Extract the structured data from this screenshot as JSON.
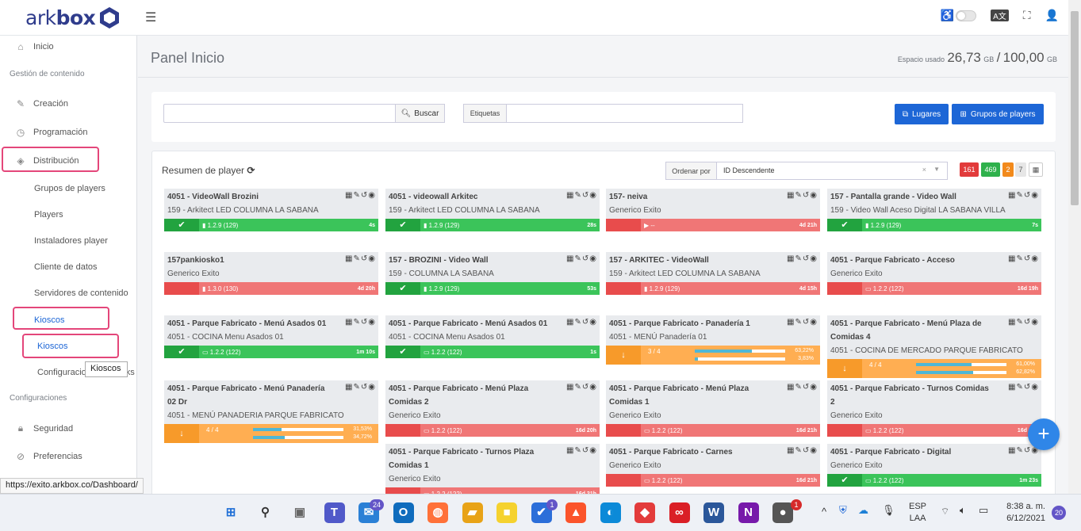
{
  "app": {
    "brand_light": "ark",
    "brand_bold": "box"
  },
  "header": {
    "menu_icon": "hamburger-icon",
    "icons": [
      "accessibility-icon",
      "translate-icon",
      "fullscreen-icon",
      "user-icon"
    ]
  },
  "sidebar": {
    "inicio": "Inicio",
    "sec_contenido": "Gestión de contenido",
    "creacion": "Creación",
    "programacion": "Programación",
    "distribucion": "Distribución",
    "grupos": "Grupos de players",
    "players": "Players",
    "instaladores": "Instaladores player",
    "cliente": "Cliente de datos",
    "servidores": "Servidores de contenido",
    "kioscos": "Kioscos",
    "kioscos_sub": "Kioscos",
    "configuracion": "Configuracio",
    "configuracion_tail": "ks",
    "sec_config": "Configuraciones",
    "seguridad": "Seguridad",
    "preferencias": "Preferencias",
    "tooltip": "Kioscos"
  },
  "page": {
    "title": "Panel Inicio",
    "space_label": "Espacio usado",
    "space_used": "26,73",
    "space_unit": "GB",
    "space_sep": "/",
    "space_total": "100,00",
    "space_unit2": "GB"
  },
  "filters": {
    "search_value": "",
    "search_button": "Buscar",
    "tags_label": "Etiquetas",
    "tags_value": "",
    "lugares": "Lugares",
    "grupos": "Grupos de players"
  },
  "summary": {
    "title": "Resumen de player",
    "order_label": "Ordenar por",
    "order_value": "ID Descendente",
    "badges": [
      {
        "value": "161",
        "color": "#e23b3b"
      },
      {
        "value": "469",
        "color": "#2fb14c"
      },
      {
        "value": "2",
        "color": "#f28a1c"
      },
      {
        "value": "7",
        "color": "#e6e6e6"
      }
    ]
  },
  "players": [
    {
      "title": "4051 - VideoWall Brozini",
      "sub": "159 - Arkitect LED COLUMNA LA SABANA",
      "status": "ok",
      "icon": "▮",
      "version": "1.2.9 (129)",
      "time": "4s"
    },
    {
      "title": "4051 - videowall Arkitec",
      "sub": "159 - Arkitect LED COLUMNA LA SABANA",
      "status": "ok",
      "icon": "▮",
      "version": "1.2.9 (129)",
      "time": "28s"
    },
    {
      "title": "157- neiva",
      "sub": "Generico Exito",
      "status": "off",
      "icon": "▶",
      "version": "--",
      "time": "4d 21h"
    },
    {
      "title": "157 - Pantalla grande - Video Wall",
      "sub": "159 - Video Wall Aceso Digital LA SABANA VILLA",
      "status": "ok",
      "icon": "▮",
      "version": "1.2.9 (129)",
      "time": "7s"
    },
    {
      "title": "157pankiosko1",
      "sub": "Generico Exito",
      "status": "off",
      "icon": "▮",
      "version": "1.3.0 (130)",
      "time": "4d 20h"
    },
    {
      "title": "157 - BROZINI - Video Wall",
      "sub": "159 - COLUMNA LA SABANA",
      "status": "ok",
      "icon": "▮",
      "version": "1.2.9 (129)",
      "time": "53s"
    },
    {
      "title": "157 - ARKITEC - VideoWall",
      "sub": "159 - Arkitect LED COLUMNA LA SABANA",
      "status": "off",
      "icon": "▮",
      "version": "1.2.9 (129)",
      "time": "4d 15h"
    },
    {
      "title": "4051 - Parque Fabricato - Acceso",
      "sub": "Generico Exito",
      "status": "off",
      "icon": "▭",
      "version": "1.2.2 (122)",
      "time": "16d 19h"
    },
    {
      "title": "4051 - Parque Fabricato - Menú Asados 01",
      "sub": "4051 - COCINA Menu Asados 01",
      "status": "ok",
      "icon": "▭",
      "version": "1.2.2 (122)",
      "time": "1m 10s"
    },
    {
      "title": "4051 - Parque Fabricato - Menú Asados 01",
      "sub": "4051 - COCINA Menu Asados 01",
      "status": "ok",
      "icon": "▭",
      "version": "1.2.2 (122)",
      "time": "1s"
    },
    {
      "title": "4051 - Parque Fabricato - Panadería 1",
      "sub": "4051 - MENÚ Panadería 01",
      "status": "sync",
      "count": "3 / 4",
      "p1": "63,22%",
      "p1v": 0.632,
      "p2": "3,83%",
      "p2v": 0.038
    },
    {
      "title": "4051 - Parque Fabricato - Menú Plaza de Comidas 4",
      "sub": "4051 - COCINA DE MERCADO PARQUE FABRICATO",
      "status": "sync",
      "count": "4 / 4",
      "p1": "61,00%",
      "p1v": 0.61,
      "p2": "62,82%",
      "p2v": 0.628
    },
    {
      "title": "4051 - Parque Fabricato - Menú Panadería 02 Dr",
      "sub": "4051 - MENÚ PANADERIA PARQUE FABRICATO",
      "status": "sync",
      "count": "4 / 4",
      "p1": "31,53%",
      "p1v": 0.315,
      "p2": "34,72%",
      "p2v": 0.347
    },
    {
      "title": "4051 - Parque Fabricato - Menú Plaza Comidas 2",
      "sub": "Generico Exito",
      "status": "off",
      "icon": "▭",
      "version": "1.2.2 (122)",
      "time": "16d 20h"
    },
    {
      "title": "4051 - Parque Fabricato - Menú Plaza Comidas 1",
      "sub": "Generico Exito",
      "status": "off",
      "icon": "▭",
      "version": "1.2.2 (122)",
      "time": "16d 21h"
    },
    {
      "title": "4051 - Parque Fabricato - Turnos Comidas 2",
      "sub": "Generico Exito",
      "status": "off",
      "icon": "▭",
      "version": "1.2.2 (122)",
      "time": "16d 21h"
    },
    {
      "title": "4051 - Parque Fabricato - Turnos Plaza Comidas 1",
      "sub": "Generico Exito",
      "status": "off",
      "icon": "▭",
      "version": "1.2.2 (122)",
      "time": "16d 21h"
    },
    {
      "title": "4051 - Parque Fabricato - Carnes",
      "sub": "Generico Exito",
      "status": "off",
      "icon": "▭",
      "version": "1.2.2 (122)",
      "time": "16d 21h"
    },
    {
      "title": "4051 - Parque Fabricato - Digital",
      "sub": "Generico Exito",
      "status": "ok",
      "icon": "▭",
      "version": "1.2.2 (122)",
      "time": "1m 23s"
    }
  ],
  "statusbar": {
    "url": "https://exito.arkbox.co/Dashboard/"
  },
  "taskbar": {
    "apps": [
      "start-icon",
      "search-icon",
      "task-view-icon",
      "teams-icon",
      "mail-icon",
      "outlook-icon",
      "firefox-icon",
      "files-icon",
      "sticky-notes-icon",
      "todo-icon",
      "brave-icon",
      "edge-icon",
      "anydesk-icon",
      "creative-cloud-icon",
      "word-icon",
      "onenote-icon",
      "app-icon"
    ],
    "mail_badge": "24",
    "todo_badge": "1",
    "app_badge": "1",
    "lang1": "ESP",
    "lang2": "LAA",
    "time": "8:38 a. m.",
    "date": "6/12/2021",
    "notif": "20"
  }
}
